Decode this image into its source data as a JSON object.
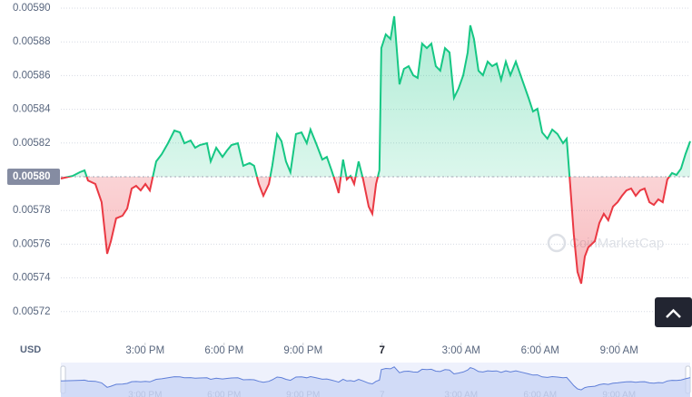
{
  "chart_data": {
    "type": "line",
    "y_unit": "USD",
    "watermark": "CoinMarketCap",
    "up_color": "#16c784",
    "down_color": "#ea3943",
    "baseline": 0.0058,
    "xlim": [
      11.8,
      35.7
    ],
    "ylim": [
      0.0057,
      0.0059
    ],
    "xticks": [
      {
        "value": 15,
        "label": "3:00 PM"
      },
      {
        "value": 18,
        "label": "6:00 PM"
      },
      {
        "value": 21,
        "label": "9:00 PM"
      },
      {
        "value": 24,
        "label": "7"
      },
      {
        "value": 27,
        "label": "3:00 AM"
      },
      {
        "value": 30,
        "label": "6:00 AM"
      },
      {
        "value": 33,
        "label": "9:00 AM"
      }
    ],
    "yticks": [
      0.00572,
      0.00574,
      0.00576,
      0.00578,
      {
        "value": 0.0058,
        "label": "0.00580"
      },
      0.00582,
      0.00584,
      0.00586,
      0.00588,
      {
        "value": 0.0059,
        "label": "0.00590"
      }
    ],
    "x": [
      11.8,
      12.25,
      12.52,
      12.7,
      12.83,
      13.11,
      13.35,
      13.56,
      13.7,
      13.9,
      14.14,
      14.32,
      14.49,
      14.66,
      14.83,
      15.01,
      15.18,
      15.42,
      15.63,
      15.87,
      16.11,
      16.32,
      16.49,
      16.73,
      16.9,
      17.08,
      17.35,
      17.49,
      17.7,
      17.94,
      18.11,
      18.28,
      18.52,
      18.73,
      18.97,
      19.14,
      19.32,
      19.49,
      19.7,
      19.83,
      20.01,
      20.18,
      20.35,
      20.52,
      20.73,
      20.94,
      21.14,
      21.28,
      21.49,
      21.73,
      21.9,
      22.08,
      22.25,
      22.35,
      22.52,
      22.66,
      22.8,
      22.94,
      23.11,
      23.28,
      23.49,
      23.63,
      23.77,
      23.9,
      23.97,
      24.14,
      24.32,
      24.46,
      24.66,
      24.83,
      25.01,
      25.18,
      25.35,
      25.52,
      25.7,
      25.87,
      26.04,
      26.21,
      26.39,
      26.56,
      26.73,
      26.9,
      27.08,
      27.25,
      27.35,
      27.49,
      27.66,
      27.83,
      28.01,
      28.18,
      28.35,
      28.52,
      28.7,
      28.87,
      29.08,
      29.32,
      29.56,
      29.73,
      29.9,
      30.08,
      30.28,
      30.46,
      30.66,
      30.87,
      31.01,
      31.14,
      31.28,
      31.42,
      31.56,
      31.7,
      31.83,
      32.08,
      32.25,
      32.42,
      32.59,
      32.77,
      32.94,
      33.11,
      33.28,
      33.46,
      33.63,
      33.8,
      33.97,
      34.15,
      34.32,
      34.49,
      34.66,
      34.83,
      35.01,
      35.18,
      35.35,
      35.52,
      35.7
    ],
    "values": [
      0.0057989,
      0.0058005,
      0.0058027,
      0.0058038,
      0.0057978,
      0.0057957,
      0.0057849,
      0.0057543,
      0.0057618,
      0.0057753,
      0.0057769,
      0.0057812,
      0.005793,
      0.0057946,
      0.0057919,
      0.0057957,
      0.0057919,
      0.0058091,
      0.0058134,
      0.0058199,
      0.0058274,
      0.0058263,
      0.0058199,
      0.0058215,
      0.0058172,
      0.0058188,
      0.0058199,
      0.0058091,
      0.0058172,
      0.0058118,
      0.0058156,
      0.0058188,
      0.0058199,
      0.0058065,
      0.0058081,
      0.0058065,
      0.0057957,
      0.0057887,
      0.0057957,
      0.0058065,
      0.0058253,
      0.005821,
      0.0058091,
      0.0058027,
      0.0058253,
      0.0058263,
      0.0058199,
      0.005828,
      0.0058199,
      0.0058102,
      0.0058118,
      0.0058038,
      0.0057957,
      0.0057903,
      0.0058102,
      0.0057984,
      0.0058005,
      0.0057957,
      0.0058091,
      0.0057984,
      0.0057823,
      0.005778,
      0.0057957,
      0.0058038,
      0.0058763,
      0.0058844,
      0.0058817,
      0.0058952,
      0.0058548,
      0.005864,
      0.0058656,
      0.0058602,
      0.0058586,
      0.005879,
      0.0058763,
      0.005879,
      0.0058656,
      0.0058629,
      0.0058763,
      0.0058737,
      0.0058468,
      0.0058522,
      0.0058602,
      0.0058737,
      0.0058898,
      0.0058817,
      0.0058629,
      0.0058602,
      0.0058683,
      0.0058656,
      0.0058672,
      0.0058575,
      0.0058683,
      0.0058602,
      0.0058683,
      0.0058575,
      0.0058468,
      0.0058387,
      0.0058403,
      0.0058263,
      0.0058226,
      0.005828,
      0.0058253,
      0.0058199,
      0.0058226,
      0.0057957,
      0.0057661,
      0.0057436,
      0.0057366,
      0.0057527,
      0.0057581,
      0.0057618,
      0.0057726,
      0.005778,
      0.0057742,
      0.0057823,
      0.0057849,
      0.0057887,
      0.0057919,
      0.005793,
      0.0057887,
      0.0057919,
      0.005793,
      0.0057849,
      0.0057833,
      0.0057866,
      0.0057849,
      0.0057984,
      0.0058022,
      0.0058011,
      0.0058048,
      0.0058134,
      0.005821
    ]
  }
}
